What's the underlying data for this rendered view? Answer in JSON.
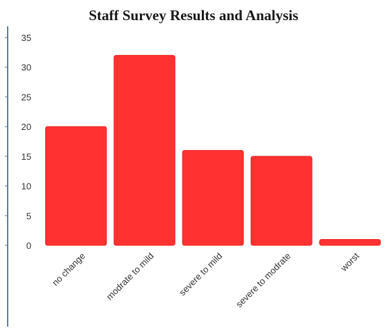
{
  "chart_data": {
    "type": "bar",
    "title": "Staff Survey Results and Analysis",
    "categories": [
      "no change",
      "modrate to mild",
      "severe to mild",
      "severe to modrate",
      "worst"
    ],
    "values": [
      20,
      32,
      16,
      15,
      1
    ],
    "ylim": [
      0,
      35
    ],
    "yticks": [
      0,
      5,
      10,
      15,
      20,
      25,
      30,
      35
    ],
    "xlabel": "",
    "ylabel": "",
    "grid": false,
    "colors": {
      "bar": "#ff3131",
      "bar_edge": "#e82424",
      "axis_line": "#5b7fa6",
      "tick_text": "#333333"
    }
  }
}
